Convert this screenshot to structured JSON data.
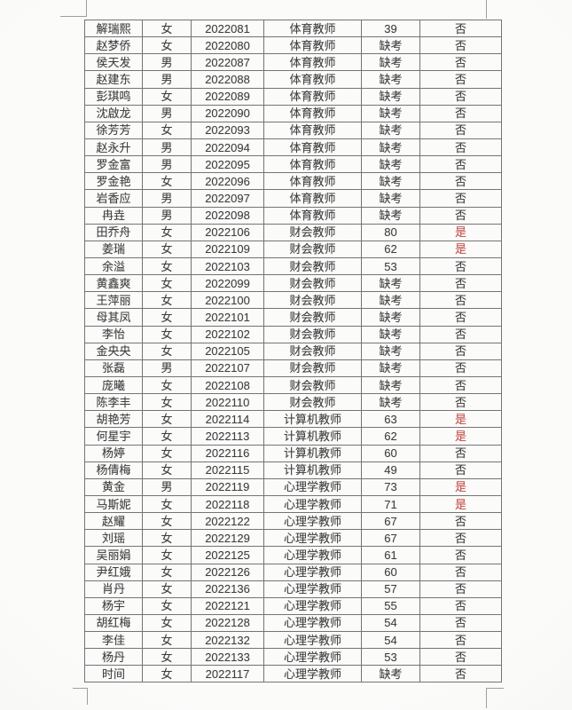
{
  "colors": {
    "qualified_yes_red": "#c5524c",
    "text": "#414141",
    "table_border": "#747474",
    "page_background": "#f8f8f7",
    "crop_mark": "#9e9e9e"
  },
  "table": {
    "qualified_yes_value": "是",
    "absent_value": "缺考",
    "rows": [
      [
        "解瑞熙",
        "女",
        "2022081",
        "体育教师",
        "39",
        "否"
      ],
      [
        "赵梦侨",
        "女",
        "2022080",
        "体育教师",
        "缺考",
        "否"
      ],
      [
        "侯天发",
        "男",
        "2022087",
        "体育教师",
        "缺考",
        "否"
      ],
      [
        "赵建东",
        "男",
        "2022088",
        "体育教师",
        "缺考",
        "否"
      ],
      [
        "彭琪鸣",
        "女",
        "2022089",
        "体育教师",
        "缺考",
        "否"
      ],
      [
        "沈啟龙",
        "男",
        "2022090",
        "体育教师",
        "缺考",
        "否"
      ],
      [
        "徐芳芳",
        "女",
        "2022093",
        "体育教师",
        "缺考",
        "否"
      ],
      [
        "赵永升",
        "男",
        "2022094",
        "体育教师",
        "缺考",
        "否"
      ],
      [
        "罗金富",
        "男",
        "2022095",
        "体育教师",
        "缺考",
        "否"
      ],
      [
        "罗金艳",
        "女",
        "2022096",
        "体育教师",
        "缺考",
        "否"
      ],
      [
        "岩香应",
        "男",
        "2022097",
        "体育教师",
        "缺考",
        "否"
      ],
      [
        "冉垚",
        "男",
        "2022098",
        "体育教师",
        "缺考",
        "否"
      ],
      [
        "田乔舟",
        "女",
        "2022106",
        "财会教师",
        "80",
        "是"
      ],
      [
        "姜瑞",
        "女",
        "2022109",
        "财会教师",
        "62",
        "是"
      ],
      [
        "余溢",
        "女",
        "2022103",
        "财会教师",
        "53",
        "否"
      ],
      [
        "黄鑫爽",
        "女",
        "2022099",
        "财会教师",
        "缺考",
        "否"
      ],
      [
        "王萍丽",
        "女",
        "2022100",
        "财会教师",
        "缺考",
        "否"
      ],
      [
        "母其凤",
        "女",
        "2022101",
        "财会教师",
        "缺考",
        "否"
      ],
      [
        "李怡",
        "女",
        "2022102",
        "财会教师",
        "缺考",
        "否"
      ],
      [
        "金央央",
        "女",
        "2022105",
        "财会教师",
        "缺考",
        "否"
      ],
      [
        "张磊",
        "男",
        "2022107",
        "财会教师",
        "缺考",
        "否"
      ],
      [
        "庞曦",
        "女",
        "2022108",
        "财会教师",
        "缺考",
        "否"
      ],
      [
        "陈李丰",
        "女",
        "2022110",
        "财会教师",
        "缺考",
        "否"
      ],
      [
        "胡艳芳",
        "女",
        "2022114",
        "计算机教师",
        "63",
        "是"
      ],
      [
        "何星宇",
        "女",
        "2022113",
        "计算机教师",
        "62",
        "是"
      ],
      [
        "杨婷",
        "女",
        "2022116",
        "计算机教师",
        "60",
        "否"
      ],
      [
        "杨倩梅",
        "女",
        "2022115",
        "计算机教师",
        "49",
        "否"
      ],
      [
        "黄金",
        "男",
        "2022119",
        "心理学教师",
        "73",
        "是"
      ],
      [
        "马斯妮",
        "女",
        "2022118",
        "心理学教师",
        "71",
        "是"
      ],
      [
        "赵耀",
        "女",
        "2022122",
        "心理学教师",
        "67",
        "否"
      ],
      [
        "刘瑶",
        "女",
        "2022129",
        "心理学教师",
        "67",
        "否"
      ],
      [
        "吴丽娟",
        "女",
        "2022125",
        "心理学教师",
        "61",
        "否"
      ],
      [
        "尹红娥",
        "女",
        "2022126",
        "心理学教师",
        "60",
        "否"
      ],
      [
        "肖丹",
        "女",
        "2022136",
        "心理学教师",
        "57",
        "否"
      ],
      [
        "杨宇",
        "女",
        "2022121",
        "心理学教师",
        "55",
        "否"
      ],
      [
        "胡红梅",
        "女",
        "2022128",
        "心理学教师",
        "54",
        "否"
      ],
      [
        "李佳",
        "女",
        "2022132",
        "心理学教师",
        "54",
        "否"
      ],
      [
        "杨丹",
        "女",
        "2022133",
        "心理学教师",
        "53",
        "否"
      ],
      [
        "时间",
        "女",
        "2022117",
        "心理学教师",
        "缺考",
        "否"
      ]
    ]
  }
}
